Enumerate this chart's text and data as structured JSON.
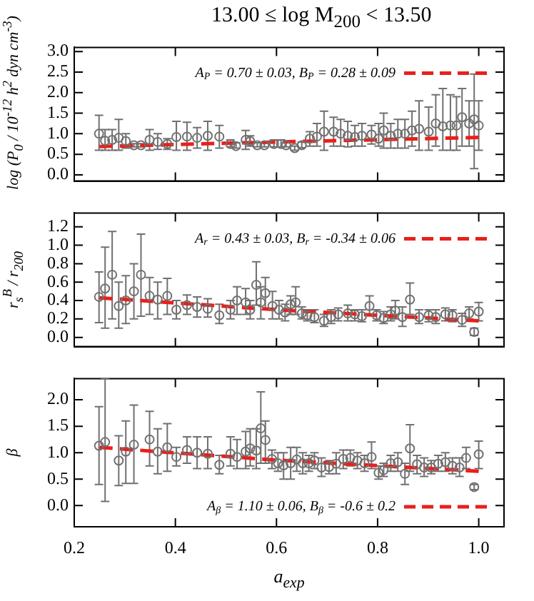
{
  "chart_data": [
    {
      "type": "scatter",
      "title": "13.00 ≤ log M$_{200}$ < 13.50",
      "ylabel": "log (P$_{0}$ / 10$^{-12}$ h$^{2}$ dyn cm$^{-3}$)",
      "xlim": [
        0.2,
        1.05
      ],
      "xticks": [
        0.2,
        0.4,
        0.6,
        0.8,
        1
      ],
      "ylim": [
        -0.15,
        3.1
      ],
      "yticks": [
        {
          "value": 0,
          "label": "0.0"
        },
        0.5,
        {
          "value": 1,
          "label": "1.0"
        },
        1.5,
        {
          "value": 2,
          "label": "2.0"
        },
        2.5,
        {
          "value": 3,
          "label": "3.0"
        }
      ],
      "tick_labels": "y",
      "legend": "top right",
      "marker": "circle",
      "series": [
        {
          "type": "scatter",
          "color": "#707070",
          "x": [
            0.249,
            0.261,
            0.275,
            0.288,
            0.302,
            0.318,
            0.332,
            0.349,
            0.365,
            0.384,
            0.402,
            0.423,
            0.443,
            0.464,
            0.487,
            0.509,
            0.52,
            0.539,
            0.548,
            0.562,
            0.576,
            0.595,
            0.609,
            0.619,
            0.636,
            0.65,
            0.666,
            0.68,
            0.694,
            0.713,
            0.727,
            0.741,
            0.755,
            0.769,
            0.788,
            0.802,
            0.812,
            0.826,
            0.84,
            0.854,
            0.868,
            0.882,
            0.901,
            0.915,
            0.929,
            0.944,
            0.956,
            0.967,
            0.981,
            0.991,
            1.0
          ],
          "values": [
            1.0,
            0.83,
            0.85,
            0.9,
            0.82,
            0.72,
            0.72,
            0.85,
            0.8,
            0.75,
            0.92,
            0.93,
            0.9,
            0.95,
            0.93,
            0.75,
            0.7,
            0.85,
            0.82,
            0.72,
            0.72,
            0.75,
            0.75,
            0.72,
            0.65,
            0.72,
            0.88,
            0.93,
            1.05,
            1.05,
            1.0,
            0.95,
            0.92,
            0.95,
            0.98,
            0.88,
            1.08,
            0.95,
            1.0,
            1.0,
            1.08,
            1.12,
            1.05,
            1.25,
            1.18,
            1.2,
            1.2,
            1.4,
            1.25,
            1.35,
            1.2
          ],
          "errors": [
            [
              0.6,
              1.45
            ],
            [
              0.6,
              1.1
            ],
            [
              0.6,
              1.1
            ],
            [
              0.6,
              1.35
            ],
            [
              0.65,
              1.0
            ],
            [
              0.68,
              0.76
            ],
            [
              0.68,
              0.76
            ],
            [
              0.6,
              1.1
            ],
            [
              0.62,
              1.0
            ],
            [
              0.62,
              0.88
            ],
            [
              0.6,
              1.3
            ],
            [
              0.6,
              1.28
            ],
            [
              0.65,
              1.15
            ],
            [
              0.6,
              1.3
            ],
            [
              0.65,
              1.2
            ],
            [
              0.68,
              0.85
            ],
            [
              0.65,
              0.78
            ],
            [
              0.62,
              1.08
            ],
            [
              0.7,
              0.95
            ],
            [
              0.68,
              0.78
            ],
            [
              0.68,
              0.78
            ],
            [
              0.68,
              0.85
            ],
            [
              0.68,
              0.85
            ],
            [
              0.68,
              0.78
            ],
            [
              0.6,
              0.7
            ],
            [
              0.66,
              0.8
            ],
            [
              0.7,
              1.05
            ],
            [
              0.7,
              1.25
            ],
            [
              0.6,
              1.55
            ],
            [
              0.7,
              1.4
            ],
            [
              0.7,
              1.35
            ],
            [
              0.68,
              1.3
            ],
            [
              0.7,
              1.2
            ],
            [
              0.7,
              1.25
            ],
            [
              0.75,
              1.2
            ],
            [
              0.7,
              1.25
            ],
            [
              0.65,
              1.5
            ],
            [
              0.65,
              1.25
            ],
            [
              0.65,
              1.35
            ],
            [
              0.65,
              1.35
            ],
            [
              0.7,
              1.55
            ],
            [
              0.6,
              1.8
            ],
            [
              0.6,
              1.65
            ],
            [
              0.7,
              1.95
            ],
            [
              0.6,
              2.1
            ],
            [
              0.6,
              1.95
            ],
            [
              0.6,
              1.9
            ],
            [
              0.7,
              2.1
            ],
            [
              0.7,
              1.8
            ],
            [
              0.15,
              2.45
            ],
            [
              0.6,
              1.8
            ]
          ]
        },
        {
          "type": "line",
          "name": "A$_{P}$ = 0.70 ± 0.03, B$_{P}$ = 0.28 ± 0.09",
          "color": "#e8201c",
          "line_style": "dashed",
          "marker": "none",
          "x": [
            0.25,
            0.6,
            1.0
          ],
          "values": [
            0.69,
            0.8,
            0.91
          ]
        }
      ]
    },
    {
      "type": "scatter",
      "ylabel": "r$_{s}$$^{B}$ / r$_{200}$",
      "xlim": [
        0.2,
        1.05
      ],
      "xticks": [
        0.2,
        0.4,
        0.6,
        0.8,
        1
      ],
      "ylim": [
        -0.1,
        1.35
      ],
      "yticks": [
        {
          "value": 0,
          "label": "0.0"
        },
        0.2,
        0.4,
        0.6,
        0.8,
        {
          "value": 1,
          "label": "1.0"
        },
        1.2
      ],
      "tick_labels": "y",
      "legend": "top right",
      "marker": "circle",
      "series": [
        {
          "type": "scatter",
          "color": "#707070",
          "x": [
            0.249,
            0.261,
            0.275,
            0.288,
            0.302,
            0.318,
            0.332,
            0.349,
            0.365,
            0.384,
            0.402,
            0.423,
            0.443,
            0.464,
            0.487,
            0.509,
            0.522,
            0.539,
            0.548,
            0.56,
            0.569,
            0.578,
            0.592,
            0.605,
            0.617,
            0.628,
            0.638,
            0.65,
            0.661,
            0.675,
            0.694,
            0.708,
            0.722,
            0.741,
            0.755,
            0.769,
            0.784,
            0.798,
            0.812,
            0.826,
            0.835,
            0.849,
            0.864,
            0.882,
            0.901,
            0.915,
            0.934,
            0.948,
            0.967,
            0.981,
            0.991,
            1.0
          ],
          "values": [
            0.44,
            0.53,
            0.68,
            0.34,
            0.4,
            0.5,
            0.68,
            0.45,
            0.41,
            0.45,
            0.3,
            0.35,
            0.33,
            0.31,
            0.24,
            0.3,
            0.4,
            0.38,
            0.3,
            0.57,
            0.38,
            0.48,
            0.34,
            0.3,
            0.27,
            0.36,
            0.38,
            0.26,
            0.24,
            0.22,
            0.18,
            0.22,
            0.25,
            0.26,
            0.25,
            0.23,
            0.34,
            0.24,
            0.21,
            0.25,
            0.29,
            0.22,
            0.41,
            0.22,
            0.24,
            0.22,
            0.25,
            0.24,
            0.19,
            0.26,
            0.06,
            0.28
          ],
          "errors": [
            [
              0.16,
              0.71
            ],
            [
              0.1,
              0.98
            ],
            [
              0.2,
              1.15
            ],
            [
              0.1,
              0.6
            ],
            [
              0.15,
              0.67
            ],
            [
              0.2,
              0.8
            ],
            [
              0.23,
              1.12
            ],
            [
              0.25,
              0.65
            ],
            [
              0.2,
              0.6
            ],
            [
              0.25,
              0.64
            ],
            [
              0.2,
              0.4
            ],
            [
              0.25,
              0.46
            ],
            [
              0.22,
              0.44
            ],
            [
              0.22,
              0.42
            ],
            [
              0.15,
              0.36
            ],
            [
              0.2,
              0.4
            ],
            [
              0.25,
              0.55
            ],
            [
              0.25,
              0.53
            ],
            [
              0.2,
              0.4
            ],
            [
              0.35,
              0.82
            ],
            [
              0.2,
              0.55
            ],
            [
              0.3,
              0.65
            ],
            [
              0.2,
              0.5
            ],
            [
              0.2,
              0.4
            ],
            [
              0.18,
              0.36
            ],
            [
              0.25,
              0.45
            ],
            [
              0.25,
              0.55
            ],
            [
              0.2,
              0.33
            ],
            [
              0.18,
              0.3
            ],
            [
              0.16,
              0.3
            ],
            [
              0.12,
              0.25
            ],
            [
              0.15,
              0.3
            ],
            [
              0.18,
              0.32
            ],
            [
              0.18,
              0.35
            ],
            [
              0.18,
              0.3
            ],
            [
              0.17,
              0.3
            ],
            [
              0.25,
              0.45
            ],
            [
              0.18,
              0.3
            ],
            [
              0.15,
              0.28
            ],
            [
              0.18,
              0.33
            ],
            [
              0.2,
              0.4
            ],
            [
              0.12,
              0.33
            ],
            [
              0.25,
              0.59
            ],
            [
              0.15,
              0.3
            ],
            [
              0.17,
              0.3
            ],
            [
              0.15,
              0.3
            ],
            [
              0.18,
              0.32
            ],
            [
              0.17,
              0.3
            ],
            [
              0.12,
              0.26
            ],
            [
              0.2,
              0.33
            ],
            [
              0.02,
              0.1
            ],
            [
              0.18,
              0.38
            ]
          ]
        },
        {
          "type": "line",
          "name": "A$_{r}$ = 0.43 ± 0.03, B$_{r}$ = -0.34 ± 0.06",
          "color": "#e8201c",
          "line_style": "dashed",
          "marker": "none",
          "x": [
            0.25,
            0.6,
            1.0
          ],
          "values": [
            0.43,
            0.3,
            0.18
          ]
        }
      ]
    },
    {
      "type": "scatter",
      "ylabel": "β",
      "xlabel": "a$_{exp}$",
      "xlim": [
        0.2,
        1.05
      ],
      "xticks": [
        0.2,
        0.4,
        0.6,
        0.8,
        {
          "value": 1,
          "label": "1.0"
        }
      ],
      "ylim": [
        -0.4,
        2.4
      ],
      "yticks": [
        {
          "value": 0,
          "label": "0.0"
        },
        0.5,
        {
          "value": 1,
          "label": "1.0"
        },
        1.5,
        {
          "value": 2,
          "label": "2.0"
        }
      ],
      "legend": "bottom right",
      "marker": "circle",
      "series": [
        {
          "type": "scatter",
          "color": "#707070",
          "x": [
            0.249,
            0.261,
            0.288,
            0.302,
            0.318,
            0.349,
            0.365,
            0.384,
            0.402,
            0.423,
            0.443,
            0.464,
            0.487,
            0.509,
            0.522,
            0.539,
            0.548,
            0.56,
            0.569,
            0.578,
            0.591,
            0.603,
            0.614,
            0.628,
            0.64,
            0.652,
            0.664,
            0.675,
            0.689,
            0.704,
            0.718,
            0.732,
            0.746,
            0.76,
            0.774,
            0.788,
            0.802,
            0.812,
            0.826,
            0.84,
            0.854,
            0.864,
            0.878,
            0.892,
            0.906,
            0.92,
            0.934,
            0.948,
            0.962,
            0.975,
            0.991,
            1.0
          ],
          "values": [
            1.13,
            1.2,
            0.85,
            1.02,
            1.15,
            1.25,
            1.02,
            1.1,
            0.92,
            1.05,
            1.0,
            0.98,
            0.77,
            0.98,
            0.92,
            1.02,
            1.08,
            1.04,
            1.46,
            1.24,
            0.88,
            0.8,
            0.76,
            0.8,
            0.87,
            0.8,
            0.8,
            0.85,
            0.72,
            0.73,
            0.79,
            0.88,
            0.9,
            0.85,
            0.8,
            0.92,
            0.62,
            0.67,
            0.8,
            0.82,
            0.6,
            1.08,
            0.78,
            0.72,
            0.72,
            0.79,
            0.82,
            0.75,
            0.72,
            0.9,
            0.35,
            0.97
          ],
          "errors": [
            [
              0.4,
              1.87
            ],
            [
              0.08,
              2.4
            ],
            [
              0.38,
              1.32
            ],
            [
              0.42,
              1.6
            ],
            [
              0.42,
              1.9
            ],
            [
              0.75,
              1.78
            ],
            [
              0.6,
              1.45
            ],
            [
              0.65,
              1.55
            ],
            [
              0.75,
              1.1
            ],
            [
              0.8,
              1.3
            ],
            [
              0.7,
              1.3
            ],
            [
              0.7,
              1.3
            ],
            [
              0.6,
              0.95
            ],
            [
              0.75,
              1.3
            ],
            [
              0.7,
              1.25
            ],
            [
              0.7,
              1.4
            ],
            [
              0.75,
              1.45
            ],
            [
              0.7,
              1.45
            ],
            [
              0.8,
              2.15
            ],
            [
              0.8,
              1.6
            ],
            [
              0.7,
              1.05
            ],
            [
              0.65,
              1.0
            ],
            [
              0.5,
              1.0
            ],
            [
              0.5,
              1.1
            ],
            [
              0.65,
              1.1
            ],
            [
              0.6,
              1.0
            ],
            [
              0.65,
              0.95
            ],
            [
              0.7,
              1.0
            ],
            [
              0.55,
              0.9
            ],
            [
              0.6,
              0.85
            ],
            [
              0.6,
              1.0
            ],
            [
              0.7,
              1.05
            ],
            [
              0.75,
              1.05
            ],
            [
              0.7,
              1.0
            ],
            [
              0.65,
              0.95
            ],
            [
              0.7,
              1.2
            ],
            [
              0.5,
              0.75
            ],
            [
              0.55,
              0.8
            ],
            [
              0.65,
              0.95
            ],
            [
              0.65,
              1.0
            ],
            [
              0.4,
              0.8
            ],
            [
              0.65,
              1.53
            ],
            [
              0.6,
              0.95
            ],
            [
              0.55,
              0.9
            ],
            [
              0.6,
              0.85
            ],
            [
              0.65,
              0.95
            ],
            [
              0.65,
              1.0
            ],
            [
              0.6,
              0.9
            ],
            [
              0.55,
              0.9
            ],
            [
              0.7,
              1.1
            ],
            [
              0.3,
              0.4
            ],
            [
              0.7,
              1.22
            ]
          ]
        },
        {
          "type": "line",
          "name": "A$_{β}$ = 1.10 ± 0.06, B$_{β}$ = -0.6 ± 0.2",
          "color": "#e8201c",
          "line_style": "dashed",
          "marker": "none",
          "x": [
            0.25,
            0.6,
            1.0
          ],
          "values": [
            1.1,
            0.86,
            0.65
          ]
        }
      ]
    }
  ]
}
